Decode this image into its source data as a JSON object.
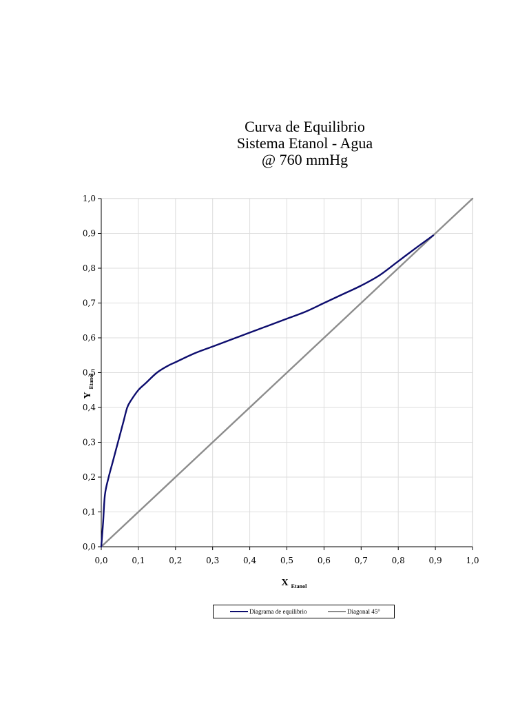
{
  "chart_data": {
    "type": "line",
    "title_lines": [
      "Curva de Equilibrio",
      "Sistema Etanol - Agua",
      "@ 760 mmHg"
    ],
    "xlabel": "X",
    "xlabel_sub": "Etanol",
    "ylabel": "Y",
    "ylabel_sub": "Etanol",
    "xlim": [
      0,
      1
    ],
    "ylim": [
      0,
      1
    ],
    "grid": true,
    "legend_position": "bottom",
    "x_ticks": [
      0,
      0.1,
      0.2,
      0.3,
      0.4,
      0.5,
      0.6,
      0.7,
      0.8,
      0.9,
      1.0
    ],
    "y_ticks": [
      0,
      0.1,
      0.2,
      0.3,
      0.4,
      0.5,
      0.6,
      0.7,
      0.8,
      0.9,
      1.0
    ],
    "x_tick_labels": [
      "0,0",
      "0,1",
      "0,2",
      "0,3",
      "0,4",
      "0,5",
      "0,6",
      "0,7",
      "0,8",
      "0,9",
      "1,0"
    ],
    "y_tick_labels": [
      "0,0",
      "0,1",
      "0,2",
      "0,3",
      "0,4",
      "0,5",
      "0,6",
      "0,7",
      "0,8",
      "0,9",
      "1,0"
    ],
    "series": [
      {
        "name": "Diagrama de equilibrio",
        "color": "#0d0d6e",
        "x": [
          0,
          0.005,
          0.01,
          0.02,
          0.03,
          0.04,
          0.05,
          0.06,
          0.07,
          0.08,
          0.1,
          0.12,
          0.15,
          0.18,
          0.2,
          0.25,
          0.3,
          0.35,
          0.4,
          0.45,
          0.5,
          0.55,
          0.6,
          0.65,
          0.7,
          0.75,
          0.8,
          0.85,
          0.894
        ],
        "y": [
          0,
          0.07,
          0.15,
          0.2,
          0.24,
          0.28,
          0.32,
          0.36,
          0.4,
          0.42,
          0.45,
          0.47,
          0.5,
          0.52,
          0.53,
          0.555,
          0.575,
          0.595,
          0.615,
          0.635,
          0.655,
          0.675,
          0.7,
          0.725,
          0.75,
          0.78,
          0.82,
          0.86,
          0.894
        ]
      },
      {
        "name": "Diagonal 45°",
        "color": "#8c8c8c",
        "x": [
          0,
          1
        ],
        "y": [
          0,
          1
        ]
      }
    ]
  }
}
